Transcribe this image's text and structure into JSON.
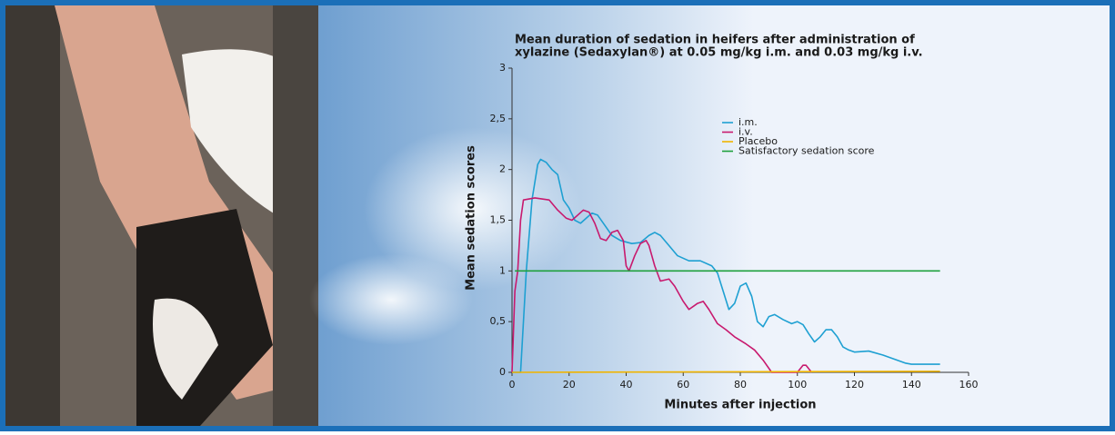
{
  "chart_data": {
    "type": "line",
    "title_lines": [
      "Mean duration of sedation in heifers after administration of",
      "xylazine (Sedaxylan®) at 0.05 mg/kg i.m. and 0.03 mg/kg i.v."
    ],
    "x_label": "Minutes after injection",
    "y_label": "Mean sedation scores",
    "xlim": [
      0,
      160
    ],
    "ylim": [
      0,
      3
    ],
    "xticks": [
      0,
      20,
      40,
      60,
      80,
      100,
      120,
      140,
      160
    ],
    "yticks": [
      0,
      {
        "value": 0.5,
        "label": "0,5"
      },
      1,
      {
        "value": 1.5,
        "label": "1,5"
      },
      2,
      {
        "value": 2.5,
        "label": "2,5"
      },
      3
    ],
    "series": [
      {
        "name": "i.m.",
        "color": "#1ea0d2",
        "x": [
          0,
          3,
          5,
          7,
          9,
          10,
          12,
          14,
          16,
          18,
          20,
          22,
          24,
          26,
          28,
          30,
          32,
          35,
          38,
          42,
          45,
          48,
          50,
          52,
          55,
          58,
          62,
          66,
          70,
          72,
          74,
          76,
          78,
          80,
          82,
          84,
          86,
          88,
          90,
          92,
          95,
          98,
          100,
          102,
          104,
          106,
          108,
          110,
          112,
          114,
          116,
          118,
          120,
          125,
          130,
          135,
          138,
          140,
          150
        ],
        "values": [
          0,
          0,
          1.0,
          1.7,
          2.05,
          2.1,
          2.07,
          2.0,
          1.95,
          1.7,
          1.62,
          1.5,
          1.47,
          1.52,
          1.57,
          1.55,
          1.47,
          1.35,
          1.3,
          1.27,
          1.28,
          1.35,
          1.38,
          1.35,
          1.25,
          1.15,
          1.1,
          1.1,
          1.05,
          0.98,
          0.8,
          0.62,
          0.68,
          0.85,
          0.88,
          0.75,
          0.5,
          0.45,
          0.55,
          0.57,
          0.52,
          0.48,
          0.5,
          0.47,
          0.38,
          0.3,
          0.35,
          0.42,
          0.42,
          0.35,
          0.25,
          0.22,
          0.2,
          0.21,
          0.17,
          0.12,
          0.09,
          0.08,
          0.08
        ]
      },
      {
        "name": "i.v.",
        "color": "#c8196e",
        "x": [
          0,
          1,
          2,
          3,
          4,
          8,
          13,
          16,
          19,
          21,
          23,
          25,
          27,
          29,
          31,
          33,
          35,
          37,
          39,
          40,
          41,
          43,
          45,
          47,
          48,
          50,
          52,
          55,
          57,
          60,
          62,
          65,
          67,
          69,
          72,
          75,
          78,
          82,
          85,
          88,
          91,
          100,
          102,
          103,
          105
        ],
        "values": [
          0,
          0.8,
          1.0,
          1.5,
          1.7,
          1.72,
          1.7,
          1.6,
          1.52,
          1.5,
          1.55,
          1.6,
          1.58,
          1.47,
          1.32,
          1.3,
          1.38,
          1.4,
          1.3,
          1.05,
          1.0,
          1.15,
          1.27,
          1.3,
          1.25,
          1.05,
          0.9,
          0.92,
          0.85,
          0.7,
          0.62,
          0.68,
          0.7,
          0.62,
          0.48,
          0.42,
          0.35,
          0.28,
          0.22,
          0.12,
          0,
          0,
          0.07,
          0.07,
          0
        ]
      },
      {
        "name": "Placebo",
        "color": "#f0b400",
        "x": [
          0,
          150
        ],
        "values": [
          0,
          0.01
        ]
      },
      {
        "name": "Satisfactory sedation score",
        "color": "#1ea03c",
        "x": [
          1,
          150
        ],
        "values": [
          1,
          1
        ]
      }
    ]
  }
}
